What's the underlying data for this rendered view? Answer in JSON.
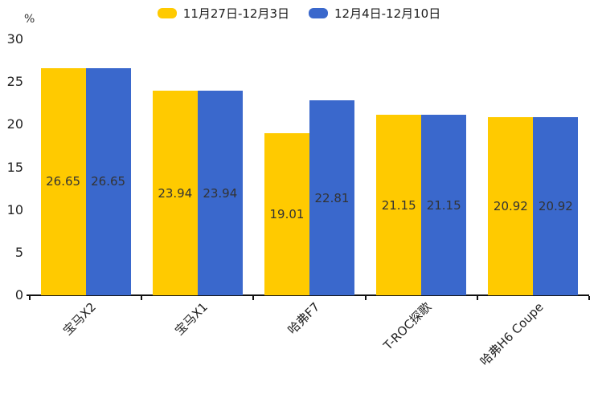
{
  "legend": {
    "items": [
      {
        "label": "11月27日-12月3日",
        "color": "#FFCA00"
      },
      {
        "label": "12月4日-12月10日",
        "color": "#3A68CC"
      }
    ]
  },
  "chart_data": {
    "type": "bar",
    "title": "",
    "xlabel": "",
    "ylabel": "%",
    "ylim": [
      0,
      30
    ],
    "yticks": [
      0,
      5,
      10,
      15,
      20,
      25,
      30
    ],
    "grid": false,
    "legend_position": "top-center",
    "bar_value_labels": "inside-middle",
    "categories": [
      "宝马X2",
      "宝马X1",
      "哈弗F7",
      "T-ROC探歌",
      "哈弗H6 Coupe"
    ],
    "series": [
      {
        "name": "11月27日-12月3日",
        "color": "#FFCA00",
        "values": [
          26.65,
          23.94,
          19.01,
          21.15,
          20.92
        ]
      },
      {
        "name": "12月4日-12月10日",
        "color": "#3A68CC",
        "values": [
          26.65,
          23.94,
          22.81,
          21.15,
          20.92
        ]
      }
    ]
  }
}
